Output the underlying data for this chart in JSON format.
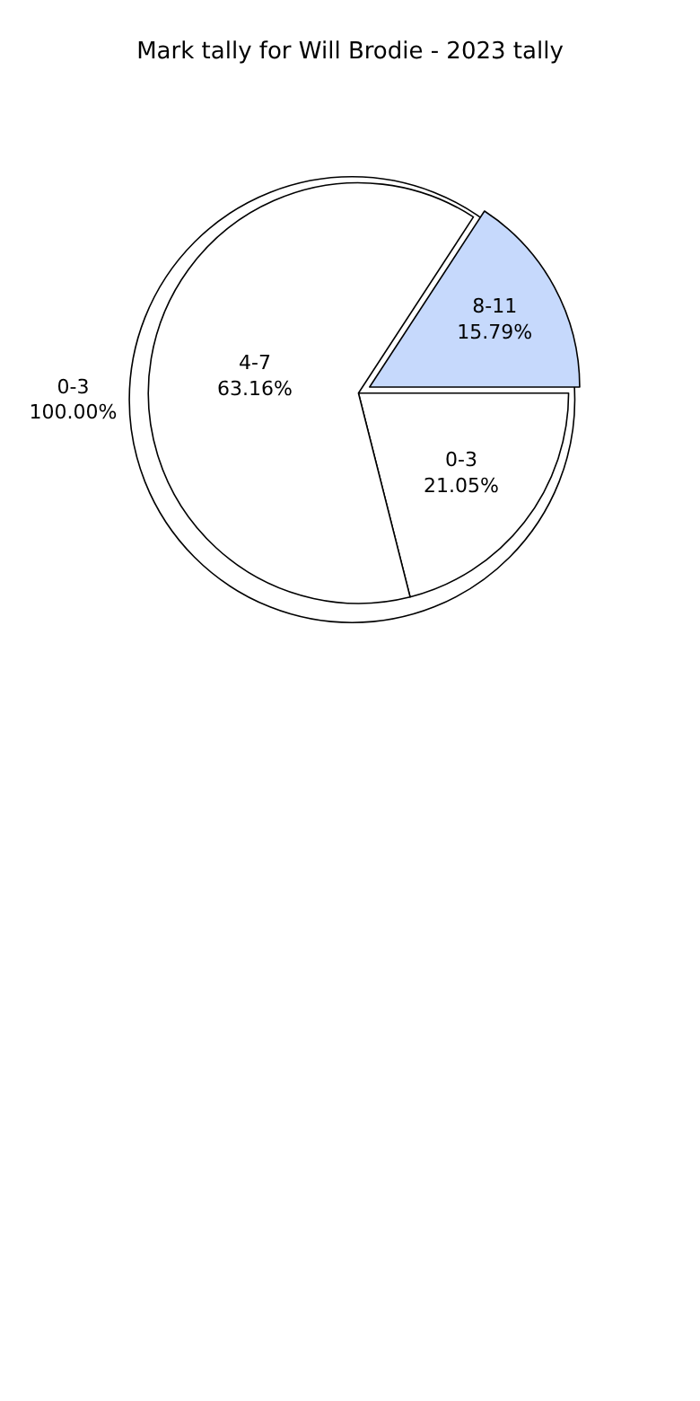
{
  "chart_data": [
    {
      "type": "pie",
      "title": "Mark tally for Will Brodie - 2023 tally",
      "categories": [
        "0-3"
      ],
      "values": [
        100
      ],
      "colors": [
        "#ffffff"
      ],
      "value_labels": [
        "100.00%"
      ]
    },
    {
      "type": "pie",
      "categories": [
        "0-3",
        "4-7",
        "8-11"
      ],
      "values": [
        21.05,
        63.16,
        15.79
      ],
      "colors": [
        "#ffffff",
        "#ffffff",
        "#c6d9fc"
      ],
      "value_labels": [
        "21.05%",
        "63.16%",
        "15.79%"
      ]
    }
  ]
}
